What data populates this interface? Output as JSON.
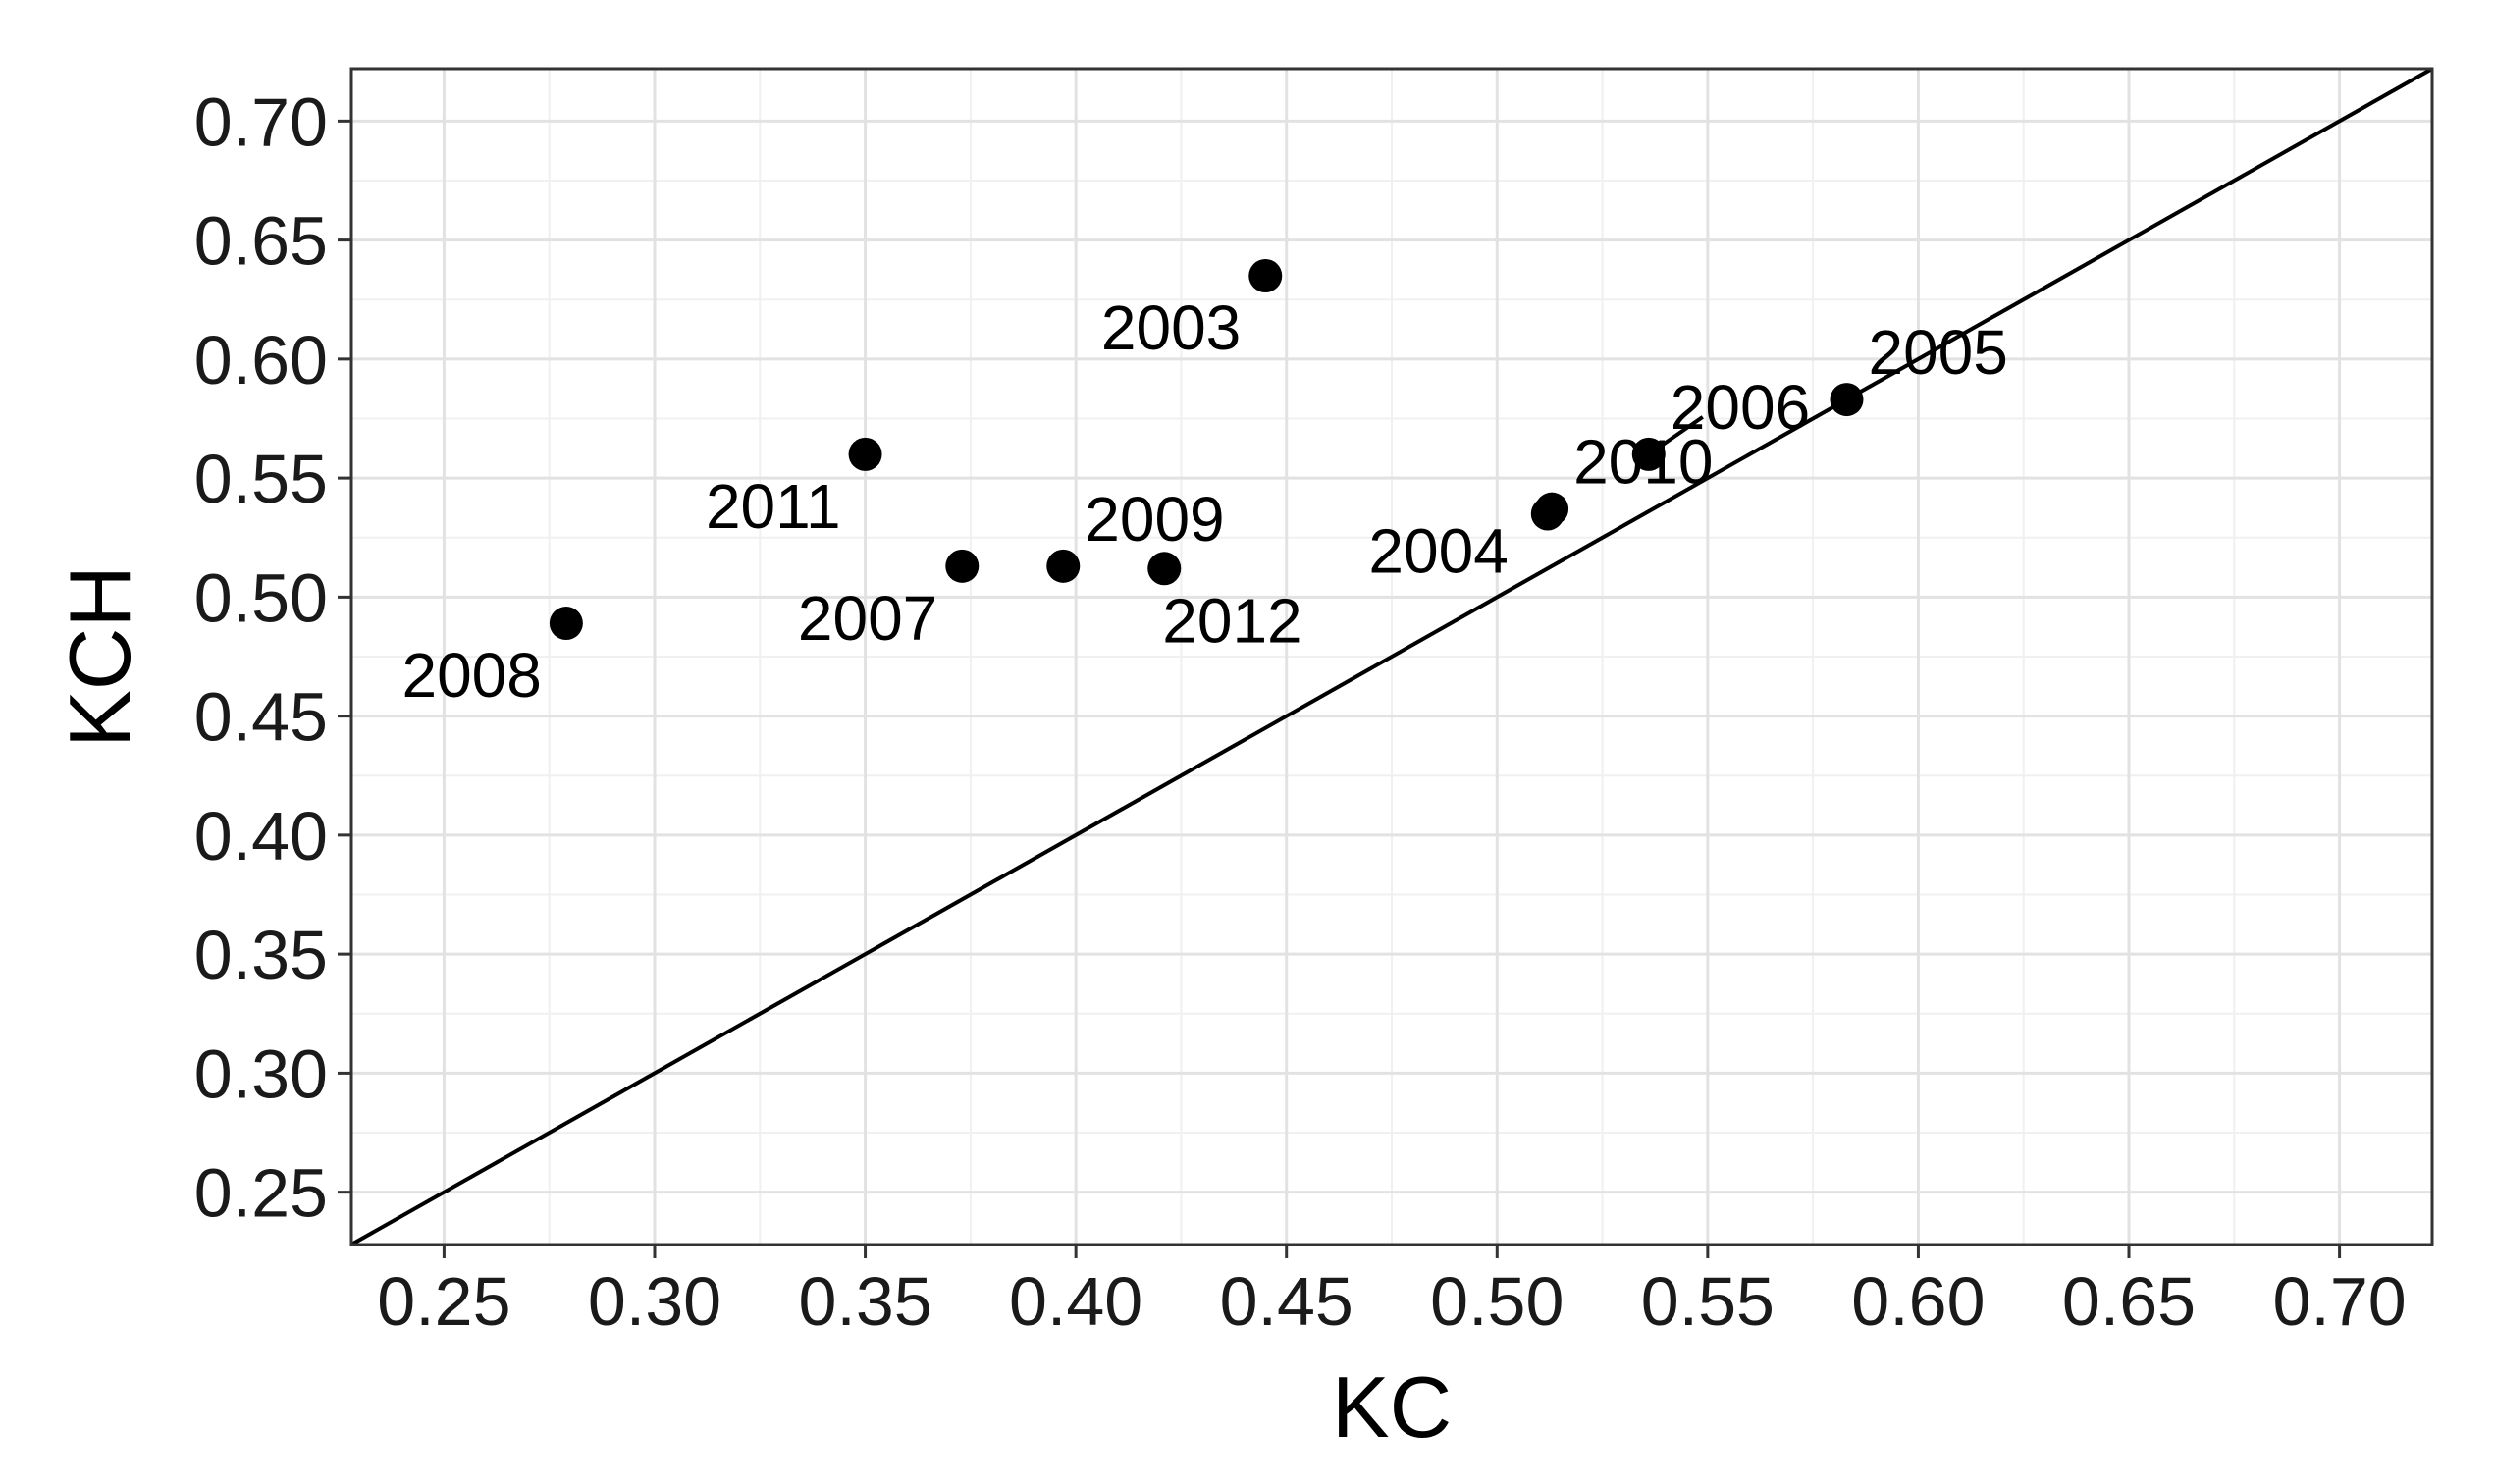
{
  "chart_data": {
    "type": "scatter",
    "title": "",
    "xlabel": "KC",
    "ylabel": "KCH",
    "xlim": [
      0.228,
      0.722
    ],
    "ylim": [
      0.228,
      0.722
    ],
    "x_ticks": [
      "0.25",
      "0.30",
      "0.35",
      "0.40",
      "0.45",
      "0.50",
      "0.55",
      "0.60",
      "0.65",
      "0.70"
    ],
    "y_ticks": [
      "0.25",
      "0.30",
      "0.35",
      "0.40",
      "0.45",
      "0.50",
      "0.55",
      "0.60",
      "0.65",
      "0.70"
    ],
    "grid": true,
    "reference_line": {
      "type": "identity",
      "equation": "y = x"
    },
    "points": [
      {
        "label": "2003",
        "x": 0.445,
        "y": 0.635,
        "label_side": "below-left"
      },
      {
        "label": "2004",
        "x": 0.512,
        "y": 0.535,
        "label_side": "left"
      },
      {
        "label": "2005",
        "x": 0.583,
        "y": 0.583,
        "label_side": "above-right"
      },
      {
        "label": "2006",
        "x": 0.536,
        "y": 0.56,
        "label_side": "above-right"
      },
      {
        "label": "2007",
        "x": 0.373,
        "y": 0.513,
        "label_side": "below-left"
      },
      {
        "label": "2008",
        "x": 0.279,
        "y": 0.489,
        "label_side": "below-left"
      },
      {
        "label": "2009",
        "x": 0.397,
        "y": 0.513,
        "label_side": "above-right"
      },
      {
        "label": "2010",
        "x": 0.513,
        "y": 0.537,
        "label_side": "above-right"
      },
      {
        "label": "2011",
        "x": 0.35,
        "y": 0.56,
        "label_side": "below-left"
      },
      {
        "label": "2012",
        "x": 0.421,
        "y": 0.512,
        "label_side": "below-right"
      }
    ],
    "colors": {
      "points": "#000000",
      "line": "#000000",
      "grid_major": "#e2e2e2",
      "grid_minor": "#f0f0f0",
      "panel_border": "#333333"
    }
  }
}
